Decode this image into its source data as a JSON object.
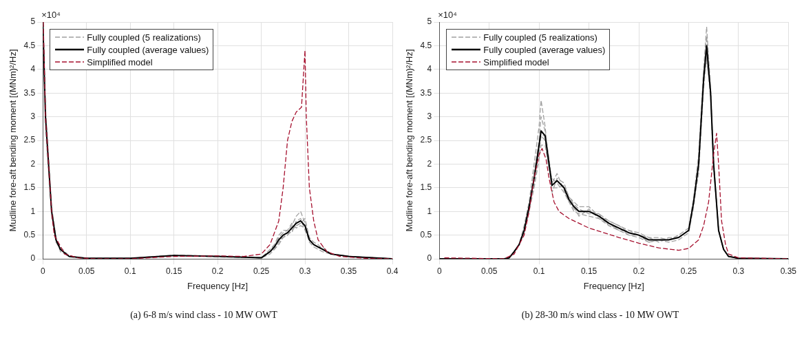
{
  "chart_data": [
    {
      "type": "line",
      "title": "(a) 6-8 m/s wind class - 10 MW OWT",
      "xlabel": "Frequency [Hz]",
      "ylabel": "Mudline fore-aft bending moment [(MNm)²/Hz]",
      "annotations": [
        "×10⁴"
      ],
      "x": [
        0,
        0.003,
        0.01,
        0.015,
        0.02,
        0.03,
        0.05,
        0.1,
        0.15,
        0.2,
        0.25,
        0.26,
        0.265,
        0.27,
        0.275,
        0.28,
        0.285,
        0.29,
        0.295,
        0.3,
        0.305,
        0.31,
        0.315,
        0.32,
        0.33,
        0.35,
        0.4
      ],
      "series": [
        {
          "name": "Fully coupled (5 realizations)",
          "color": "#a0a0a0",
          "line_style": "dashed",
          "values": [
            5,
            3.2,
            1.1,
            0.45,
            0.2,
            0.05,
            0.01,
            0.01,
            0.08,
            0.05,
            0.02,
            0.2,
            0.3,
            0.5,
            0.6,
            0.6,
            0.7,
            0.9,
            1.0,
            0.75,
            0.4,
            0.3,
            0.25,
            0.2,
            0.1,
            0.05,
            0
          ]
        },
        {
          "color": "#a0a0a0",
          "line_style": "dashed",
          "values": [
            5,
            2.8,
            0.9,
            0.35,
            0.2,
            0.05,
            0.01,
            0.01,
            0.06,
            0.05,
            0.02,
            0.1,
            0.2,
            0.35,
            0.45,
            0.5,
            0.6,
            0.7,
            0.75,
            0.85,
            0.45,
            0.35,
            0.3,
            0.2,
            0.1,
            0.05,
            0
          ]
        },
        {
          "color": "#a0a0a0",
          "line_style": "dashed",
          "values": [
            5,
            3.1,
            1.0,
            0.4,
            0.25,
            0.06,
            0.01,
            0.01,
            0.07,
            0.06,
            0.03,
            0.15,
            0.25,
            0.45,
            0.55,
            0.6,
            0.75,
            0.65,
            0.7,
            0.65,
            0.35,
            0.25,
            0.2,
            0.15,
            0.1,
            0.05,
            0
          ]
        },
        {
          "color": "#a0a0a0",
          "line_style": "dashed",
          "values": [
            5,
            2.9,
            1.0,
            0.4,
            0.2,
            0.04,
            0.01,
            0.01,
            0.07,
            0.05,
            0.02,
            0.15,
            0.2,
            0.3,
            0.45,
            0.55,
            0.55,
            0.8,
            0.85,
            0.6,
            0.4,
            0.3,
            0.25,
            0.2,
            0.1,
            0.05,
            0
          ]
        },
        {
          "color": "#a0a0a0",
          "line_style": "dashed",
          "values": [
            5,
            3.0,
            1.0,
            0.45,
            0.15,
            0.05,
            0.01,
            0.01,
            0.07,
            0.04,
            0.02,
            0.15,
            0.3,
            0.4,
            0.45,
            0.5,
            0.65,
            0.7,
            0.75,
            0.7,
            0.4,
            0.3,
            0.25,
            0.25,
            0.1,
            0.05,
            0
          ]
        },
        {
          "name": "Fully coupled (average values)",
          "color": "#000000",
          "line_style": "solid",
          "values": [
            5,
            3,
            1,
            0.4,
            0.2,
            0.05,
            0.01,
            0.01,
            0.07,
            0.05,
            0.02,
            0.15,
            0.25,
            0.4,
            0.5,
            0.55,
            0.65,
            0.75,
            0.8,
            0.7,
            0.4,
            0.3,
            0.25,
            0.2,
            0.1,
            0.05,
            0
          ]
        },
        {
          "name": "Simplified model",
          "color": "#a50f2d",
          "line_style": "dashed",
          "x": [
            0.0005,
            0.003,
            0.01,
            0.013,
            0.025,
            0.04,
            0.06,
            0.1,
            0.15,
            0.2,
            0.23,
            0.25,
            0.26,
            0.27,
            0.275,
            0.28,
            0.285,
            0.29,
            0.296,
            0.3,
            0.3015,
            0.305,
            0.31,
            0.315,
            0.325,
            0.34,
            0.37,
            0.4
          ],
          "values": [
            5,
            3,
            1,
            0.5,
            0.1,
            0.02,
            0,
            0,
            0.05,
            0.06,
            0.05,
            0.1,
            0.3,
            0.8,
            1.5,
            2.5,
            2.9,
            3.1,
            3.2,
            4.4,
            3.0,
            1.5,
            0.8,
            0.4,
            0.15,
            0.05,
            0.01,
            0
          ]
        }
      ],
      "xlim": [
        0,
        0.4
      ],
      "xticks": [
        0,
        0.05,
        0.1,
        0.15,
        0.2,
        0.25,
        0.3,
        0.35,
        0.4
      ],
      "ylim": [
        0,
        5
      ],
      "yticks": [
        0,
        0.5,
        1,
        1.5,
        2,
        2.5,
        3,
        3.5,
        4,
        4.5,
        5
      ],
      "grid": true,
      "legend": "top left",
      "marker": "none"
    },
    {
      "type": "line",
      "title": "(b) 28-30 m/s wind class - 10 MW OWT",
      "xlabel": "Frequency [Hz]",
      "ylabel": "Mudline fore-aft bending moment [(MNm)²/Hz]",
      "annotations": [
        "×10⁴"
      ],
      "x": [
        0,
        0.065,
        0.07,
        0.075,
        0.08,
        0.085,
        0.09,
        0.095,
        0.1,
        0.102,
        0.106,
        0.11,
        0.113,
        0.118,
        0.125,
        0.13,
        0.135,
        0.14,
        0.15,
        0.16,
        0.17,
        0.18,
        0.19,
        0.2,
        0.21,
        0.22,
        0.23,
        0.24,
        0.25,
        0.255,
        0.26,
        0.265,
        0.268,
        0.272,
        0.275,
        0.28,
        0.285,
        0.29,
        0.3,
        0.35
      ],
      "series": [
        {
          "name": "Fully coupled (5 realizations)",
          "color": "#a0a0a0",
          "line_style": "dashed",
          "values": [
            0,
            0,
            0.02,
            0.15,
            0.3,
            0.7,
            1.2,
            2.0,
            2.8,
            3.35,
            2.8,
            2.0,
            1.4,
            1.7,
            1.6,
            1.3,
            1.2,
            1.1,
            1.1,
            0.9,
            0.8,
            0.7,
            0.6,
            0.55,
            0.45,
            0.45,
            0.4,
            0.5,
            0.65,
            1.3,
            2.2,
            4.0,
            4.9,
            3.6,
            2.1,
            0.6,
            0.2,
            0.05,
            0.01,
            0
          ]
        },
        {
          "color": "#a0a0a0",
          "line_style": "dashed",
          "values": [
            0,
            0,
            0.02,
            0.15,
            0.3,
            0.55,
            1.0,
            1.5,
            2.1,
            2.4,
            2.4,
            1.9,
            1.7,
            1.6,
            1.4,
            1.2,
            1.0,
            0.95,
            0.9,
            0.85,
            0.7,
            0.6,
            0.5,
            0.45,
            0.35,
            0.4,
            0.35,
            0.4,
            0.55,
            1.1,
            1.9,
            3.6,
            4.3,
            3.4,
            1.9,
            0.6,
            0.2,
            0.05,
            0.01,
            0
          ]
        },
        {
          "color": "#a0a0a0",
          "line_style": "dashed",
          "values": [
            0,
            0,
            0.02,
            0.15,
            0.3,
            0.6,
            1.1,
            1.8,
            2.5,
            3.0,
            2.7,
            2.1,
            1.5,
            1.5,
            1.55,
            1.3,
            1.15,
            1.05,
            0.95,
            0.95,
            0.8,
            0.7,
            0.55,
            0.5,
            0.45,
            0.35,
            0.45,
            0.45,
            0.6,
            1.2,
            2.1,
            3.9,
            4.7,
            3.5,
            2.0,
            0.6,
            0.2,
            0.05,
            0.01,
            0
          ]
        },
        {
          "color": "#a0a0a0",
          "line_style": "dashed",
          "values": [
            0,
            0,
            0.02,
            0.15,
            0.3,
            0.6,
            1.1,
            1.6,
            2.3,
            2.6,
            2.5,
            1.9,
            1.6,
            1.8,
            1.45,
            1.2,
            1.1,
            0.9,
            1.05,
            0.85,
            0.75,
            0.6,
            0.6,
            0.5,
            0.4,
            0.4,
            0.4,
            0.45,
            0.6,
            1.2,
            2.0,
            3.7,
            4.4,
            3.5,
            2.0,
            0.6,
            0.2,
            0.05,
            0.01,
            0
          ]
        },
        {
          "color": "#a0a0a0",
          "line_style": "dashed",
          "values": [
            0,
            0,
            0.02,
            0.15,
            0.3,
            0.55,
            1.1,
            1.6,
            2.3,
            2.6,
            2.6,
            2.1,
            1.55,
            1.65,
            1.5,
            1.25,
            1.05,
            1.0,
            1.0,
            0.95,
            0.7,
            0.65,
            0.5,
            0.5,
            0.35,
            0.4,
            0.4,
            0.45,
            0.6,
            1.2,
            1.8,
            3.8,
            4.2,
            3.5,
            2.0,
            0.6,
            0.2,
            0.05,
            0.01,
            0
          ]
        },
        {
          "name": "Fully coupled (average values)",
          "color": "#000000",
          "line_style": "solid",
          "values": [
            0,
            0,
            0.02,
            0.15,
            0.3,
            0.6,
            1.1,
            1.7,
            2.4,
            2.7,
            2.6,
            2.0,
            1.55,
            1.65,
            1.5,
            1.25,
            1.1,
            1.0,
            1.0,
            0.9,
            0.75,
            0.65,
            0.55,
            0.5,
            0.4,
            0.4,
            0.4,
            0.45,
            0.6,
            1.2,
            2.0,
            3.8,
            4.5,
            3.5,
            2.0,
            0.6,
            0.2,
            0.05,
            0.01,
            0
          ]
        },
        {
          "name": "Simplified model",
          "color": "#a50f2d",
          "line_style": "dashed",
          "x": [
            0.005,
            0.065,
            0.075,
            0.085,
            0.09,
            0.095,
            0.1,
            0.103,
            0.107,
            0.11,
            0.115,
            0.12,
            0.13,
            0.15,
            0.18,
            0.2,
            0.22,
            0.24,
            0.25,
            0.26,
            0.265,
            0.27,
            0.275,
            0.278,
            0.28,
            0.283,
            0.287,
            0.29,
            0.3,
            0.35
          ],
          "values": [
            0.02,
            0,
            0.1,
            0.5,
            1.0,
            1.7,
            2.2,
            2.33,
            2.1,
            1.7,
            1.2,
            1.0,
            0.85,
            0.65,
            0.45,
            0.33,
            0.23,
            0.18,
            0.22,
            0.4,
            0.7,
            1.2,
            2.2,
            2.65,
            2.0,
            0.8,
            0.3,
            0.1,
            0.02,
            0
          ]
        }
      ],
      "xlim": [
        0,
        0.35
      ],
      "xticks": [
        0,
        0.05,
        0.1,
        0.15,
        0.2,
        0.25,
        0.3,
        0.35
      ],
      "ylim": [
        0,
        5
      ],
      "yticks": [
        0,
        0.5,
        1,
        1.5,
        2,
        2.5,
        3,
        3.5,
        4,
        4.5,
        5
      ],
      "grid": true,
      "legend": "top left",
      "marker": "none"
    }
  ]
}
